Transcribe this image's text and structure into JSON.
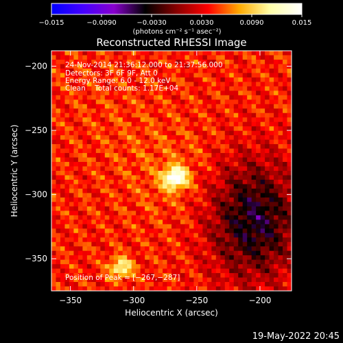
{
  "chart_data": {
    "type": "heatmap",
    "title": "Reconstructed RHESSI Image",
    "xlabel": "Heliocentric X (arcsec)",
    "ylabel": "Heliocentric Y (arcsec)",
    "xlim": [
      -365,
      -175
    ],
    "ylim": [
      -375,
      -188
    ],
    "x_ticks": [
      -350,
      -300,
      -250,
      -200
    ],
    "x_tick_labels": [
      "−350",
      "−300",
      "−250",
      "−200"
    ],
    "y_ticks": [
      -200,
      -250,
      -300,
      -350
    ],
    "y_tick_labels": [
      "−200",
      "−250",
      "−300",
      "−350"
    ],
    "colorbar": {
      "min": -0.015,
      "max": 0.015,
      "ticks": [
        -0.015,
        -0.009,
        -0.003,
        0.003,
        0.009,
        0.015
      ],
      "tick_labels": [
        "−0.015",
        "−0.0090",
        "−0.0030",
        "0.0030",
        "0.0090",
        "0.015"
      ],
      "unit": "(photons cm⁻² s⁻¹ asec⁻²)",
      "colormap": [
        "#0000ff",
        "#4400ff",
        "#8800cc",
        "#000000",
        "#880000",
        "#ff0000",
        "#ffaa00",
        "#ffffaa",
        "#ffffff"
      ]
    },
    "info_lines": [
      "24-Nov-2014 21:36:12.000 to 21:37:56.000",
      "Detectors: 3F 6F 9F, Att 0",
      "Energy Range: 6.0 - 12.0 keV",
      "Clean    Total counts: 1.17E+04"
    ],
    "peak_label": "Position of Peak = [−267,−287]",
    "sources": [
      {
        "x": -267,
        "y": -287,
        "value": 0.015
      },
      {
        "x": -310,
        "y": -357,
        "value": 0.0115
      }
    ]
  },
  "footer": {
    "date_stamp": "19-May-2022 20:45"
  }
}
